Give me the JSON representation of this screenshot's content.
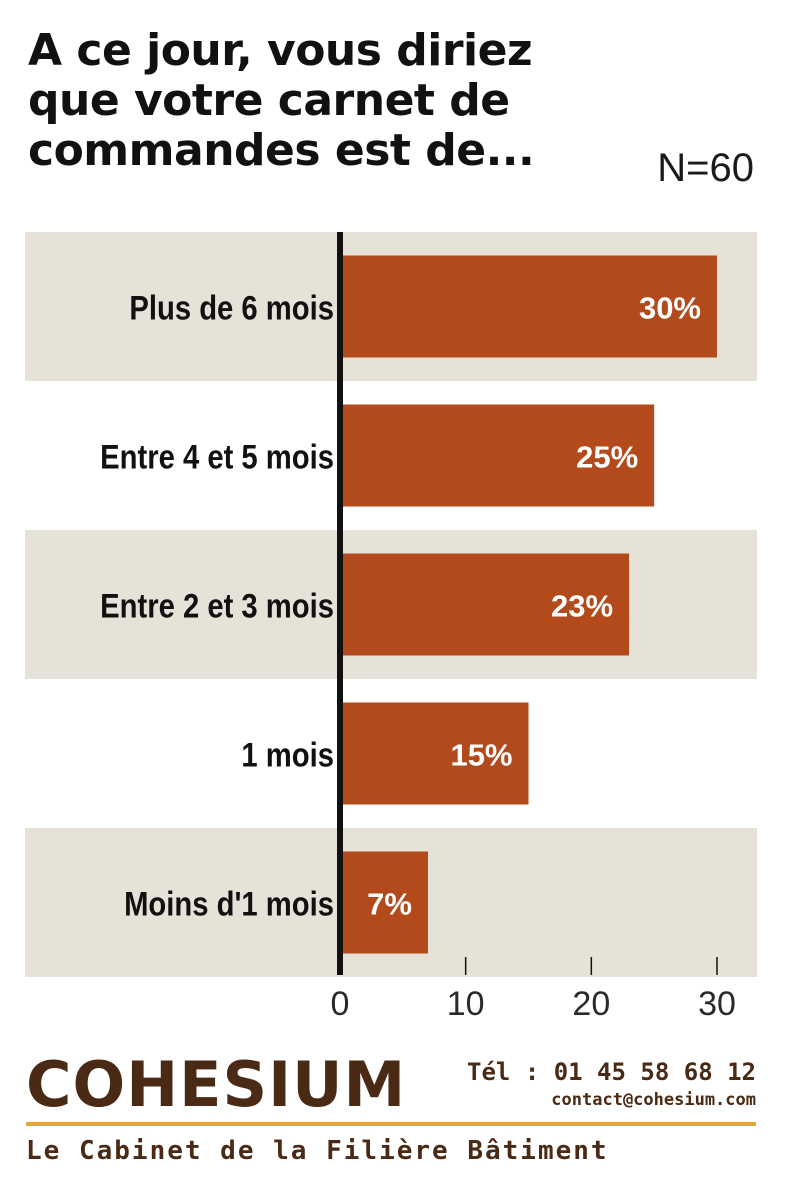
{
  "title_lines": [
    "A ce jour, vous diriez",
    "que votre carnet de",
    "commandes est de..."
  ],
  "sample_size": "N=60",
  "colors": {
    "bar": "#b34a1c",
    "band": "#e6e2d8",
    "axis": "#111111",
    "text": "#111111",
    "value_text": "#ffffff"
  },
  "chart_data": {
    "type": "bar",
    "orientation": "horizontal",
    "title": "A ce jour, vous diriez que votre carnet de commandes est de...",
    "categories": [
      "Plus de 6 mois",
      "Entre 4 et 5 mois",
      "Entre 2 et 3 mois",
      "1 mois",
      "Moins d'1 mois"
    ],
    "values": [
      30,
      25,
      23,
      15,
      7
    ],
    "value_labels": [
      "30%",
      "25%",
      "23%",
      "15%",
      "7%"
    ],
    "x_ticks": [
      0,
      10,
      20,
      30
    ],
    "xlim": [
      0,
      33
    ],
    "xlabel": "",
    "ylabel": ""
  },
  "footer": {
    "brand": "COHESIUM",
    "phone": "Tél : 01 45 58 68 12",
    "email": "contact@cohesium.com",
    "tagline": "Le Cabinet de la Filière Bâtiment"
  }
}
